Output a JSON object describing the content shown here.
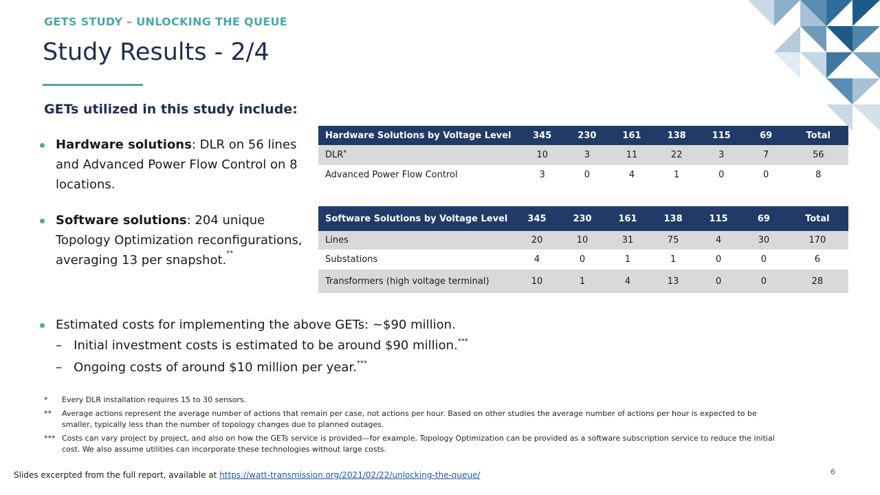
{
  "header": {
    "kicker": "GETS STUDY – UNLOCKING THE QUEUE",
    "title": "Study Results - 2/4"
  },
  "intro": "GETs utilized in this study include:",
  "bullets": [
    {
      "bold": "Hardware solutions",
      "text": ": DLR on 56 lines and Advanced Power Flow Control on 8 locations."
    },
    {
      "bold": "Software solutions",
      "text": ": 204 unique Topology Optimization reconfigurations, averaging 13 per snapshot.",
      "sup": "**"
    }
  ],
  "costs": {
    "text": "Estimated costs for implementing the above GETs: ~$90 million.",
    "subs": [
      {
        "dash": "–",
        "text": "Initial investment costs is estimated to be around $90 million.",
        "sup": "***"
      },
      {
        "dash": "–",
        "text": "Ongoing costs of around $10 million per year.",
        "sup": "***"
      }
    ]
  },
  "tables": [
    {
      "header": [
        "Hardware Solutions by Voltage Level",
        "345",
        "230",
        "161",
        "138",
        "115",
        "69",
        "Total"
      ],
      "rows": [
        {
          "label": "DLR",
          "sup": "*",
          "cells": [
            10,
            3,
            11,
            22,
            3,
            7,
            56
          ]
        },
        {
          "label": "Advanced Power Flow Control",
          "cells": [
            3,
            0,
            4,
            1,
            0,
            0,
            8
          ]
        }
      ]
    },
    {
      "header": [
        "Software Solutions by Voltage Level",
        "345",
        "230",
        "161",
        "138",
        "115",
        "69",
        "Total"
      ],
      "rows": [
        {
          "label": "Lines",
          "cells": [
            20,
            10,
            31,
            75,
            4,
            30,
            170
          ]
        },
        {
          "label": "Substations",
          "cells": [
            4,
            0,
            1,
            1,
            0,
            0,
            6
          ]
        },
        {
          "label": "Transformers (high voltage terminal)",
          "cells": [
            10,
            1,
            4,
            13,
            0,
            0,
            28
          ]
        }
      ]
    }
  ],
  "footnotes": [
    {
      "mark": "*",
      "text": "Every DLR installation requires 15 to 30 sensors."
    },
    {
      "mark": "**",
      "text": "Average actions represent the average number of actions that remain per case, not actions per hour. Based on other studies the average number of actions per hour is expected to be smaller, typically less than the number of topology changes due to planned outages."
    },
    {
      "mark": "***",
      "text": "Costs can vary project by project, and also on how the GETs service is provided—for example, Topology Optimization can be provided as a software subscription service to reduce the initial cost. We also assume utilities can incorporate these technologies without large costs."
    }
  ],
  "footer": {
    "source": "Slides excerpted from the full report, available at",
    "link": "https://watt-transmission.org/2021/02/22/unlocking-the-queue/",
    "page": "6"
  }
}
